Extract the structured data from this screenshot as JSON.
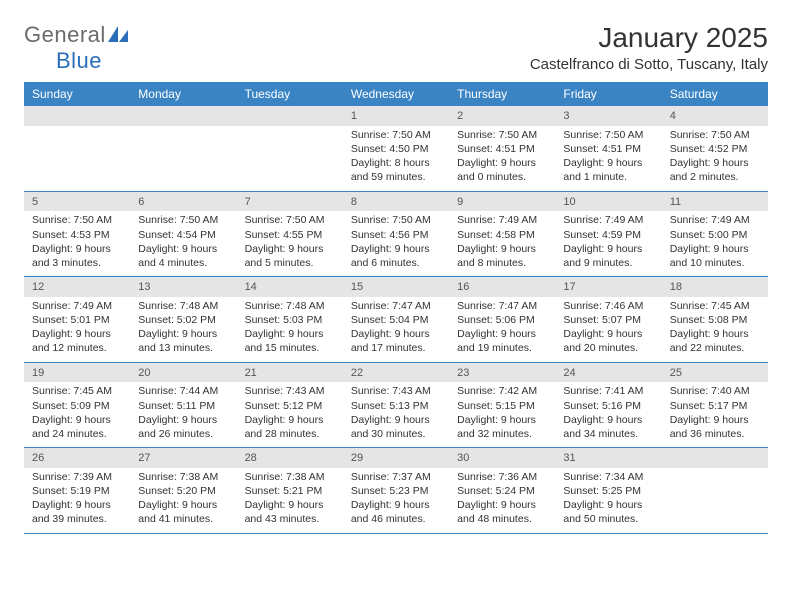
{
  "logo": {
    "text_a": "General",
    "text_b": "Blue"
  },
  "title": "January 2025",
  "location": "Castelfranco di Sotto, Tuscany, Italy",
  "colors": {
    "header_bg": "#3b84c4",
    "header_text": "#ffffff",
    "daynum_bg": "#e5e5e5",
    "rule": "#3b84c4",
    "logo_blue": "#2a6db8",
    "logo_grey": "#6b6b6b"
  },
  "day_names": [
    "Sunday",
    "Monday",
    "Tuesday",
    "Wednesday",
    "Thursday",
    "Friday",
    "Saturday"
  ],
  "weeks": [
    [
      null,
      null,
      null,
      {
        "n": "1",
        "sr": "Sunrise: 7:50 AM",
        "ss": "Sunset: 4:50 PM",
        "dl": "Daylight: 8 hours and 59 minutes."
      },
      {
        "n": "2",
        "sr": "Sunrise: 7:50 AM",
        "ss": "Sunset: 4:51 PM",
        "dl": "Daylight: 9 hours and 0 minutes."
      },
      {
        "n": "3",
        "sr": "Sunrise: 7:50 AM",
        "ss": "Sunset: 4:51 PM",
        "dl": "Daylight: 9 hours and 1 minute."
      },
      {
        "n": "4",
        "sr": "Sunrise: 7:50 AM",
        "ss": "Sunset: 4:52 PM",
        "dl": "Daylight: 9 hours and 2 minutes."
      }
    ],
    [
      {
        "n": "5",
        "sr": "Sunrise: 7:50 AM",
        "ss": "Sunset: 4:53 PM",
        "dl": "Daylight: 9 hours and 3 minutes."
      },
      {
        "n": "6",
        "sr": "Sunrise: 7:50 AM",
        "ss": "Sunset: 4:54 PM",
        "dl": "Daylight: 9 hours and 4 minutes."
      },
      {
        "n": "7",
        "sr": "Sunrise: 7:50 AM",
        "ss": "Sunset: 4:55 PM",
        "dl": "Daylight: 9 hours and 5 minutes."
      },
      {
        "n": "8",
        "sr": "Sunrise: 7:50 AM",
        "ss": "Sunset: 4:56 PM",
        "dl": "Daylight: 9 hours and 6 minutes."
      },
      {
        "n": "9",
        "sr": "Sunrise: 7:49 AM",
        "ss": "Sunset: 4:58 PM",
        "dl": "Daylight: 9 hours and 8 minutes."
      },
      {
        "n": "10",
        "sr": "Sunrise: 7:49 AM",
        "ss": "Sunset: 4:59 PM",
        "dl": "Daylight: 9 hours and 9 minutes."
      },
      {
        "n": "11",
        "sr": "Sunrise: 7:49 AM",
        "ss": "Sunset: 5:00 PM",
        "dl": "Daylight: 9 hours and 10 minutes."
      }
    ],
    [
      {
        "n": "12",
        "sr": "Sunrise: 7:49 AM",
        "ss": "Sunset: 5:01 PM",
        "dl": "Daylight: 9 hours and 12 minutes."
      },
      {
        "n": "13",
        "sr": "Sunrise: 7:48 AM",
        "ss": "Sunset: 5:02 PM",
        "dl": "Daylight: 9 hours and 13 minutes."
      },
      {
        "n": "14",
        "sr": "Sunrise: 7:48 AM",
        "ss": "Sunset: 5:03 PM",
        "dl": "Daylight: 9 hours and 15 minutes."
      },
      {
        "n": "15",
        "sr": "Sunrise: 7:47 AM",
        "ss": "Sunset: 5:04 PM",
        "dl": "Daylight: 9 hours and 17 minutes."
      },
      {
        "n": "16",
        "sr": "Sunrise: 7:47 AM",
        "ss": "Sunset: 5:06 PM",
        "dl": "Daylight: 9 hours and 19 minutes."
      },
      {
        "n": "17",
        "sr": "Sunrise: 7:46 AM",
        "ss": "Sunset: 5:07 PM",
        "dl": "Daylight: 9 hours and 20 minutes."
      },
      {
        "n": "18",
        "sr": "Sunrise: 7:45 AM",
        "ss": "Sunset: 5:08 PM",
        "dl": "Daylight: 9 hours and 22 minutes."
      }
    ],
    [
      {
        "n": "19",
        "sr": "Sunrise: 7:45 AM",
        "ss": "Sunset: 5:09 PM",
        "dl": "Daylight: 9 hours and 24 minutes."
      },
      {
        "n": "20",
        "sr": "Sunrise: 7:44 AM",
        "ss": "Sunset: 5:11 PM",
        "dl": "Daylight: 9 hours and 26 minutes."
      },
      {
        "n": "21",
        "sr": "Sunrise: 7:43 AM",
        "ss": "Sunset: 5:12 PM",
        "dl": "Daylight: 9 hours and 28 minutes."
      },
      {
        "n": "22",
        "sr": "Sunrise: 7:43 AM",
        "ss": "Sunset: 5:13 PM",
        "dl": "Daylight: 9 hours and 30 minutes."
      },
      {
        "n": "23",
        "sr": "Sunrise: 7:42 AM",
        "ss": "Sunset: 5:15 PM",
        "dl": "Daylight: 9 hours and 32 minutes."
      },
      {
        "n": "24",
        "sr": "Sunrise: 7:41 AM",
        "ss": "Sunset: 5:16 PM",
        "dl": "Daylight: 9 hours and 34 minutes."
      },
      {
        "n": "25",
        "sr": "Sunrise: 7:40 AM",
        "ss": "Sunset: 5:17 PM",
        "dl": "Daylight: 9 hours and 36 minutes."
      }
    ],
    [
      {
        "n": "26",
        "sr": "Sunrise: 7:39 AM",
        "ss": "Sunset: 5:19 PM",
        "dl": "Daylight: 9 hours and 39 minutes."
      },
      {
        "n": "27",
        "sr": "Sunrise: 7:38 AM",
        "ss": "Sunset: 5:20 PM",
        "dl": "Daylight: 9 hours and 41 minutes."
      },
      {
        "n": "28",
        "sr": "Sunrise: 7:38 AM",
        "ss": "Sunset: 5:21 PM",
        "dl": "Daylight: 9 hours and 43 minutes."
      },
      {
        "n": "29",
        "sr": "Sunrise: 7:37 AM",
        "ss": "Sunset: 5:23 PM",
        "dl": "Daylight: 9 hours and 46 minutes."
      },
      {
        "n": "30",
        "sr": "Sunrise: 7:36 AM",
        "ss": "Sunset: 5:24 PM",
        "dl": "Daylight: 9 hours and 48 minutes."
      },
      {
        "n": "31",
        "sr": "Sunrise: 7:34 AM",
        "ss": "Sunset: 5:25 PM",
        "dl": "Daylight: 9 hours and 50 minutes."
      },
      null
    ]
  ]
}
